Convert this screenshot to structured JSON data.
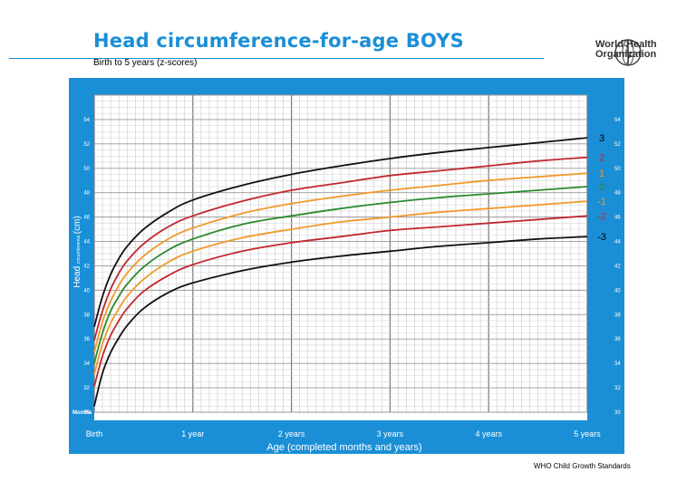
{
  "header": {
    "title": "Head circumference-for-age BOYS",
    "subtitle": "Birth to 5 years (z-scores)",
    "logo_text_line1": "World Health",
    "logo_text_line2": "Organization",
    "footer": "WHO Child Growth Standards"
  },
  "colors": {
    "frame": "#1b8fd6",
    "z_3": "#111111",
    "z_2": "#c0282e",
    "z_1": "#f09a2a",
    "z_0": "#2a8a2e",
    "label_3": "#000000",
    "label_2": "#c0282e",
    "label_1": "#f09a2a",
    "label_0": "#2a8a2e"
  },
  "chart_data": {
    "type": "line",
    "xlabel": "Age (completed months and years)",
    "ylabel_main": "Head",
    "ylabel_small": "circumference",
    "ylabel_unit": "(cm)",
    "months_label": "Months",
    "x_range_months": [
      0,
      60
    ],
    "y_range_cm": [
      30,
      56
    ],
    "grid": true,
    "x_ticks": [
      {
        "month": 0,
        "label": "Birth"
      },
      {
        "month": 12,
        "label": "1 year"
      },
      {
        "month": 24,
        "label": "2 years"
      },
      {
        "month": 36,
        "label": "3 years"
      },
      {
        "month": 48,
        "label": "4 years"
      },
      {
        "month": 60,
        "label": "5 years"
      }
    ],
    "y_ticks_left": [
      "30",
      "32",
      "34",
      "36",
      "38",
      "40",
      "42",
      "44",
      "46",
      "48",
      "50",
      "52",
      "54"
    ],
    "y_ticks_right": [
      "30",
      "32",
      "34",
      "36",
      "38",
      "40",
      "42",
      "44",
      "46",
      "48",
      "50",
      "52",
      "54"
    ],
    "months": [
      0,
      1,
      2,
      3,
      4,
      6,
      9,
      12,
      18,
      24,
      30,
      36,
      42,
      48,
      54,
      60
    ],
    "series": [
      {
        "name": "3",
        "color_key": "z_3",
        "values": [
          37.0,
          39.5,
          41.3,
          42.6,
          43.6,
          45.0,
          46.4,
          47.4,
          48.6,
          49.5,
          50.2,
          50.8,
          51.3,
          51.7,
          52.1,
          52.5
        ]
      },
      {
        "name": "2",
        "color_key": "z_2",
        "values": [
          35.9,
          38.3,
          40.1,
          41.4,
          42.4,
          43.8,
          45.2,
          46.1,
          47.3,
          48.2,
          48.8,
          49.4,
          49.8,
          50.2,
          50.6,
          50.9
        ]
      },
      {
        "name": "1",
        "color_key": "z_1",
        "values": [
          34.9,
          37.4,
          39.1,
          40.4,
          41.4,
          42.8,
          44.2,
          45.1,
          46.3,
          47.1,
          47.7,
          48.2,
          48.6,
          49.0,
          49.3,
          49.6
        ]
      },
      {
        "name": "0",
        "color_key": "z_0",
        "values": [
          34.0,
          36.5,
          38.3,
          39.5,
          40.5,
          41.9,
          43.3,
          44.2,
          45.4,
          46.1,
          46.7,
          47.2,
          47.6,
          47.9,
          48.2,
          48.5
        ]
      },
      {
        "name": "-1",
        "color_key": "z_1",
        "values": [
          33.1,
          35.6,
          37.3,
          38.5,
          39.5,
          40.9,
          42.3,
          43.2,
          44.3,
          45.0,
          45.6,
          46.0,
          46.4,
          46.7,
          47.0,
          47.3
        ]
      },
      {
        "name": "-2",
        "color_key": "z_2",
        "values": [
          32.1,
          34.6,
          36.3,
          37.5,
          38.5,
          39.9,
          41.2,
          42.1,
          43.2,
          43.9,
          44.4,
          44.9,
          45.2,
          45.5,
          45.8,
          46.1
        ]
      },
      {
        "name": "-3",
        "color_key": "z_3",
        "values": [
          30.5,
          33.2,
          34.9,
          36.1,
          37.1,
          38.5,
          39.8,
          40.6,
          41.6,
          42.3,
          42.8,
          43.2,
          43.6,
          43.9,
          44.2,
          44.4
        ]
      }
    ],
    "line_labels": [
      {
        "text": "3",
        "color_key": "label_3"
      },
      {
        "text": "2",
        "color_key": "label_2"
      },
      {
        "text": "1",
        "color_key": "label_1"
      },
      {
        "text": "0",
        "color_key": "label_0"
      },
      {
        "text": "-1",
        "color_key": "label_1"
      },
      {
        "text": "-2",
        "color_key": "label_2"
      },
      {
        "text": "-3",
        "color_key": "label_3"
      }
    ]
  }
}
